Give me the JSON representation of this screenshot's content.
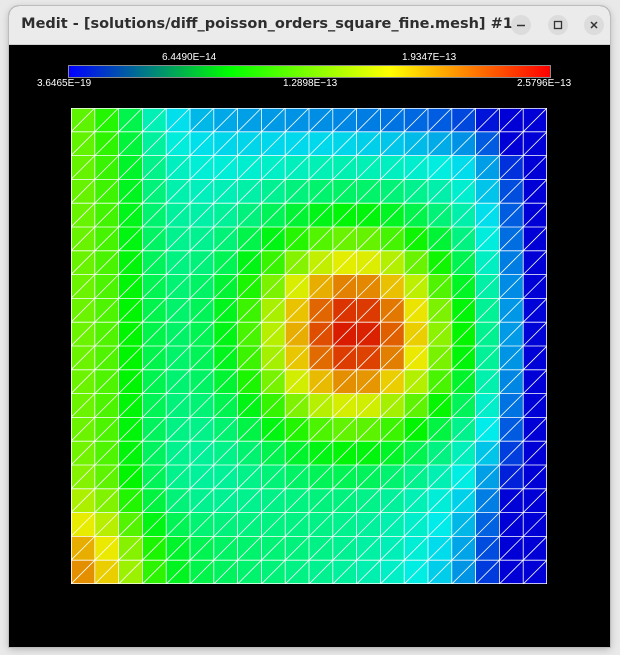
{
  "window": {
    "title": "Medit - [solutions/diff_poisson_orders_square_fine.mesh] #1",
    "controls": {
      "minimize": "minimize-icon",
      "maximize": "maximize-icon",
      "close": "close-icon"
    }
  },
  "colorbar": {
    "upper_labels": [
      "6.4490E−14",
      "1.9347E−13"
    ],
    "lower_labels": [
      "3.6465E−19",
      "1.2898E−13",
      "2.5796E−13"
    ],
    "colors": [
      "#0000ff",
      "#00ff00",
      "#ffff00",
      "#ff0000"
    ]
  },
  "chart_data": {
    "type": "heatmap",
    "title": "",
    "xlabel": "",
    "ylabel": "",
    "color_range": [
      3.6465e-19,
      2.5796e-13
    ],
    "grid_cells": 20,
    "field": "error magnitude on unit square mesh; peak ~2.58E-13 near center-right, minima near corners and boundary strips"
  },
  "mesh": {
    "edge_color": "#ffffff",
    "cells": 20
  }
}
